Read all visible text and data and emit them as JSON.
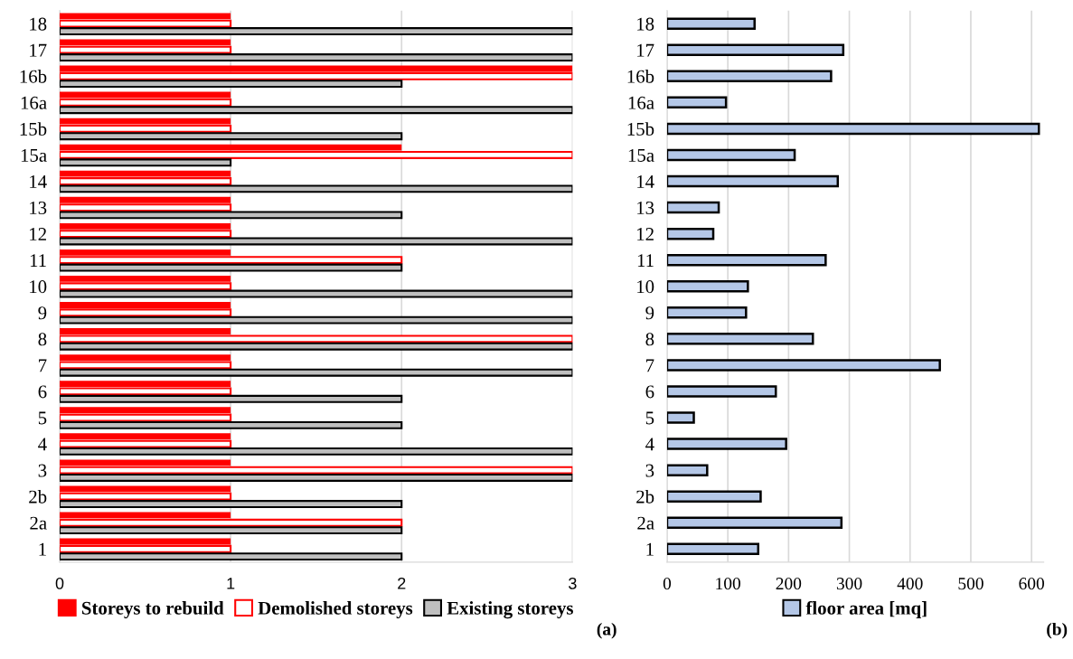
{
  "chart_data": [
    {
      "type": "bar",
      "orientation": "horizontal",
      "categories": [
        "18",
        "17",
        "16b",
        "16a",
        "15b",
        "15a",
        "14",
        "13",
        "12",
        "11",
        "10",
        "9",
        "8",
        "7",
        "6",
        "5",
        "4",
        "3",
        "2b",
        "2a",
        "1"
      ],
      "series": [
        {
          "name": "Storeys to rebuild",
          "color": "#ff0000",
          "values": [
            1,
            1,
            3,
            1,
            1,
            2,
            1,
            1,
            1,
            1,
            1,
            1,
            1,
            1,
            1,
            1,
            1,
            1,
            1,
            1,
            1
          ]
        },
        {
          "name": "Demolished storeys",
          "color": "#ff0000",
          "values": [
            1,
            1,
            3,
            1,
            1,
            3,
            1,
            1,
            1,
            2,
            1,
            1,
            3,
            1,
            1,
            1,
            1,
            3,
            1,
            2,
            1
          ]
        },
        {
          "name": "Existing storeys",
          "color": "#bfbfbf",
          "values": [
            3,
            3,
            2,
            3,
            2,
            1,
            3,
            2,
            3,
            2,
            3,
            3,
            3,
            3,
            2,
            2,
            3,
            3,
            2,
            2,
            2
          ]
        }
      ],
      "xlim": [
        0,
        3
      ],
      "xticks": [
        0,
        1,
        2,
        3
      ],
      "grid": "x",
      "legend": "bottom",
      "annotations": [
        "(a)"
      ]
    },
    {
      "type": "bar",
      "orientation": "horizontal",
      "categories": [
        "18",
        "17",
        "16b",
        "16a",
        "15b",
        "15a",
        "14",
        "13",
        "12",
        "11",
        "10",
        "9",
        "8",
        "7",
        "6",
        "5",
        "4",
        "3",
        "2b",
        "2a",
        "1"
      ],
      "series": [
        {
          "name": "floor area [mq]",
          "color": "#b4c7e7",
          "values": [
            144,
            290,
            270,
            97,
            612,
            210,
            281,
            85,
            76,
            261,
            133,
            130,
            240,
            449,
            179,
            44,
            196,
            66,
            154,
            287,
            150
          ]
        }
      ],
      "xlim": [
        0,
        620
      ],
      "xticks": [
        0,
        100,
        200,
        300,
        400,
        500,
        600
      ],
      "grid": "x",
      "legend": "bottom",
      "annotations": [
        "(b)"
      ]
    }
  ]
}
